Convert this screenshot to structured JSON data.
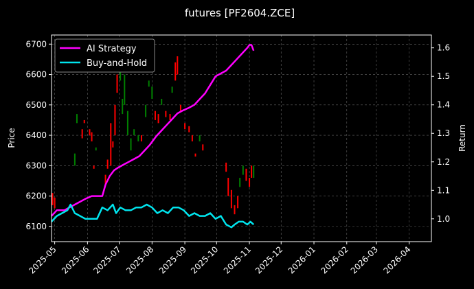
{
  "chart_data": {
    "type": "line",
    "title": "futures [PF2604.ZCE]",
    "xlabel": "",
    "ylabel": "Price",
    "y2label": "Return",
    "x_ticks": [
      "2025-05",
      "2025-06",
      "2025-07",
      "2025-08",
      "2025-09",
      "2025-10",
      "2025-11",
      "2025-12",
      "2026-01",
      "2026-02",
      "2026-03",
      "2026-04"
    ],
    "x_range": [
      "2025-04-28",
      "2026-04-22"
    ],
    "ylim": [
      6050,
      6730
    ],
    "y_ticks": [
      6100,
      6200,
      6300,
      6400,
      6500,
      6600,
      6700
    ],
    "y2lim": [
      0.92,
      1.645
    ],
    "y2_ticks": [
      1.0,
      1.1,
      1.2,
      1.3,
      1.4,
      1.5,
      1.6
    ],
    "grid": true,
    "legend": "top-left",
    "colors": {
      "up": "#008000",
      "down": "#ff0000",
      "ai": "#ff00ff",
      "bh": "#00e5ee"
    },
    "series": [
      {
        "name": "AI Strategy",
        "axis": "right",
        "x": [
          "2025-04-28",
          "2025-05-03",
          "2025-05-10",
          "2025-05-15",
          "2025-05-20",
          "2025-05-25",
          "2025-05-30",
          "2025-06-05",
          "2025-06-10",
          "2025-06-15",
          "2025-06-18",
          "2025-06-22",
          "2025-06-26",
          "2025-06-30",
          "2025-07-05",
          "2025-07-10",
          "2025-07-15",
          "2025-07-20",
          "2025-07-25",
          "2025-07-30",
          "2025-08-05",
          "2025-08-10",
          "2025-08-15",
          "2025-08-20",
          "2025-08-25",
          "2025-08-30",
          "2025-09-05",
          "2025-09-10",
          "2025-09-15",
          "2025-09-20",
          "2025-09-25",
          "2025-09-30",
          "2025-10-05",
          "2025-10-10",
          "2025-10-15",
          "2025-10-20",
          "2025-10-25",
          "2025-10-30",
          "2025-11-01",
          "2025-11-03",
          "2025-11-05"
        ],
        "values": [
          1.01,
          1.03,
          1.03,
          1.04,
          1.05,
          1.06,
          1.07,
          1.08,
          1.08,
          1.08,
          1.12,
          1.15,
          1.17,
          1.18,
          1.19,
          1.2,
          1.21,
          1.22,
          1.24,
          1.26,
          1.29,
          1.31,
          1.33,
          1.35,
          1.37,
          1.38,
          1.39,
          1.4,
          1.42,
          1.44,
          1.47,
          1.5,
          1.51,
          1.52,
          1.54,
          1.56,
          1.58,
          1.6,
          1.61,
          1.61,
          1.59
        ]
      },
      {
        "name": "Buy-and-Hold",
        "axis": "right",
        "x": [
          "2025-04-28",
          "2025-05-03",
          "2025-05-08",
          "2025-05-13",
          "2025-05-16",
          "2025-05-20",
          "2025-05-25",
          "2025-05-30",
          "2025-06-05",
          "2025-06-10",
          "2025-06-15",
          "2025-06-20",
          "2025-06-25",
          "2025-06-28",
          "2025-07-02",
          "2025-07-07",
          "2025-07-12",
          "2025-07-17",
          "2025-07-22",
          "2025-07-27",
          "2025-08-01",
          "2025-08-06",
          "2025-08-11",
          "2025-08-16",
          "2025-08-21",
          "2025-08-26",
          "2025-08-31",
          "2025-09-05",
          "2025-09-10",
          "2025-09-15",
          "2025-09-20",
          "2025-09-25",
          "2025-09-30",
          "2025-10-05",
          "2025-10-10",
          "2025-10-15",
          "2025-10-18",
          "2025-10-22",
          "2025-10-26",
          "2025-10-30",
          "2025-11-02",
          "2025-11-05"
        ],
        "values": [
          0.99,
          1.01,
          1.02,
          1.03,
          1.05,
          1.02,
          1.01,
          1.0,
          1.0,
          1.0,
          1.04,
          1.03,
          1.05,
          1.02,
          1.04,
          1.03,
          1.03,
          1.04,
          1.04,
          1.05,
          1.04,
          1.02,
          1.03,
          1.02,
          1.04,
          1.04,
          1.03,
          1.01,
          1.02,
          1.01,
          1.01,
          1.02,
          1.0,
          1.01,
          0.98,
          0.97,
          0.98,
          0.99,
          0.99,
          0.98,
          0.99,
          0.98
        ]
      }
    ],
    "candles": [
      {
        "x": "2025-04-29",
        "o": 6210,
        "c": 6170
      },
      {
        "x": "2025-05-01",
        "o": 6195,
        "c": 6160
      },
      {
        "x": "2025-05-20",
        "o": 6300,
        "c": 6340
      },
      {
        "x": "2025-05-22",
        "o": 6440,
        "c": 6470
      },
      {
        "x": "2025-05-27",
        "o": 6420,
        "c": 6390
      },
      {
        "x": "2025-05-29",
        "o": 6450,
        "c": 6440
      },
      {
        "x": "2025-06-03",
        "o": 6420,
        "c": 6400
      },
      {
        "x": "2025-06-05",
        "o": 6410,
        "c": 6380
      },
      {
        "x": "2025-06-07",
        "o": 6300,
        "c": 6290
      },
      {
        "x": "2025-06-09",
        "o": 6350,
        "c": 6360
      },
      {
        "x": "2025-06-18",
        "o": 6270,
        "c": 6240
      },
      {
        "x": "2025-06-20",
        "o": 6320,
        "c": 6290
      },
      {
        "x": "2025-06-23",
        "o": 6440,
        "c": 6300
      },
      {
        "x": "2025-06-25",
        "o": 6380,
        "c": 6360
      },
      {
        "x": "2025-06-27",
        "o": 6500,
        "c": 6400
      },
      {
        "x": "2025-06-29",
        "o": 6600,
        "c": 6540
      },
      {
        "x": "2025-07-02",
        "o": 6580,
        "c": 6610
      },
      {
        "x": "2025-07-04",
        "o": 6470,
        "c": 6520
      },
      {
        "x": "2025-07-06",
        "o": 6500,
        "c": 6600
      },
      {
        "x": "2025-07-09",
        "o": 6400,
        "c": 6480
      },
      {
        "x": "2025-07-12",
        "o": 6350,
        "c": 6390
      },
      {
        "x": "2025-07-15",
        "o": 6400,
        "c": 6420
      },
      {
        "x": "2025-07-19",
        "o": 6380,
        "c": 6400
      },
      {
        "x": "2025-07-22",
        "o": 6400,
        "c": 6380
      },
      {
        "x": "2025-07-26",
        "o": 6460,
        "c": 6500
      },
      {
        "x": "2025-07-29",
        "o": 6560,
        "c": 6580
      },
      {
        "x": "2025-08-01",
        "o": 6520,
        "c": 6560
      },
      {
        "x": "2025-08-04",
        "o": 6480,
        "c": 6450
      },
      {
        "x": "2025-08-07",
        "o": 6470,
        "c": 6440
      },
      {
        "x": "2025-08-10",
        "o": 6500,
        "c": 6520
      },
      {
        "x": "2025-08-14",
        "o": 6480,
        "c": 6460
      },
      {
        "x": "2025-08-18",
        "o": 6470,
        "c": 6450
      },
      {
        "x": "2025-08-20",
        "o": 6540,
        "c": 6560
      },
      {
        "x": "2025-08-23",
        "o": 6640,
        "c": 6580
      },
      {
        "x": "2025-08-25",
        "o": 6660,
        "c": 6600
      },
      {
        "x": "2025-08-28",
        "o": 6500,
        "c": 6480
      },
      {
        "x": "2025-09-01",
        "o": 6440,
        "c": 6420
      },
      {
        "x": "2025-09-05",
        "o": 6430,
        "c": 6410
      },
      {
        "x": "2025-09-08",
        "o": 6400,
        "c": 6380
      },
      {
        "x": "2025-09-11",
        "o": 6340,
        "c": 6330
      },
      {
        "x": "2025-09-15",
        "o": 6380,
        "c": 6400
      },
      {
        "x": "2025-09-18",
        "o": 6370,
        "c": 6350
      },
      {
        "x": "2025-10-10",
        "o": 6310,
        "c": 6280
      },
      {
        "x": "2025-10-12",
        "o": 6260,
        "c": 6200
      },
      {
        "x": "2025-10-15",
        "o": 6220,
        "c": 6160
      },
      {
        "x": "2025-10-18",
        "o": 6170,
        "c": 6140
      },
      {
        "x": "2025-10-21",
        "o": 6200,
        "c": 6160
      },
      {
        "x": "2025-10-23",
        "o": 6230,
        "c": 6260
      },
      {
        "x": "2025-10-26",
        "o": 6270,
        "c": 6300
      },
      {
        "x": "2025-10-29",
        "o": 6290,
        "c": 6250
      },
      {
        "x": "2025-11-01",
        "o": 6260,
        "c": 6230
      },
      {
        "x": "2025-11-03",
        "o": 6300,
        "c": 6260
      },
      {
        "x": "2025-11-05",
        "o": 6260,
        "c": 6300
      }
    ]
  }
}
